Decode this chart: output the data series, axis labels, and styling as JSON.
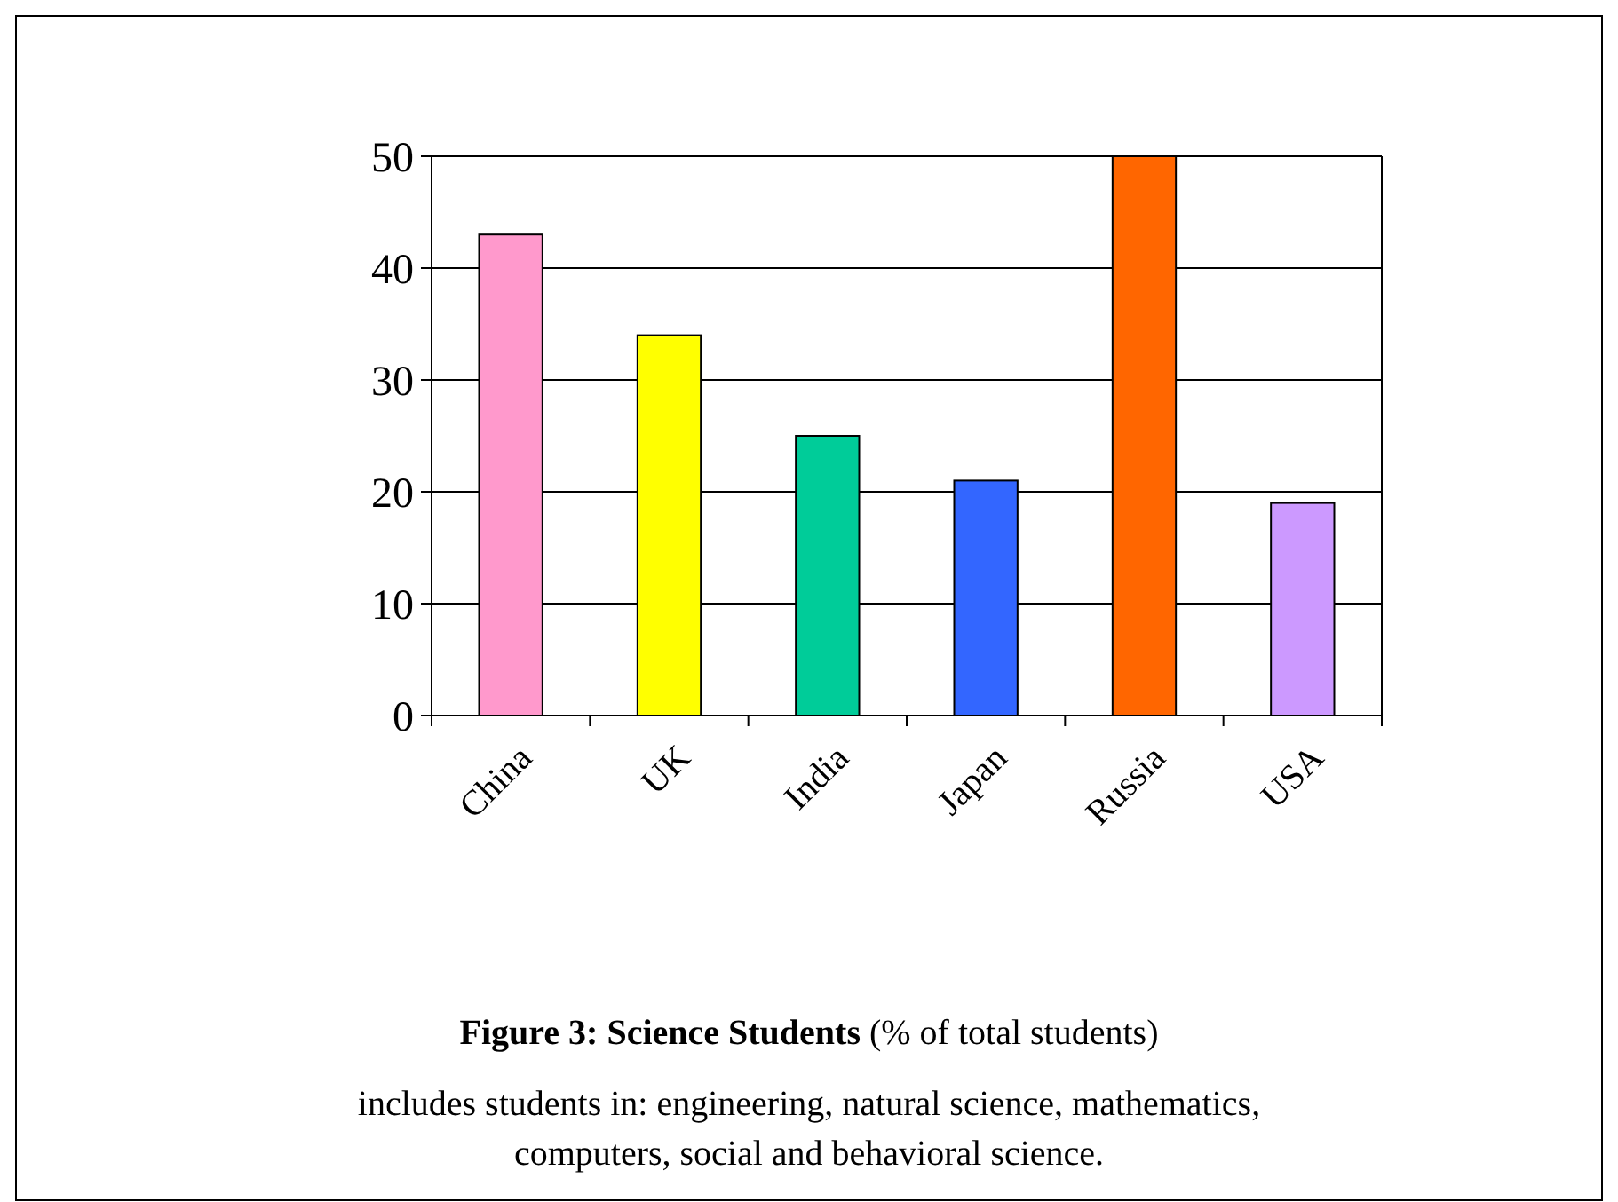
{
  "chart_data": {
    "type": "bar",
    "title": "Figure 3: Science Students",
    "subtitle": "(% of total students)",
    "categories": [
      "China",
      "UK",
      "India",
      "Japan",
      "Russia",
      "USA"
    ],
    "values": [
      43,
      34,
      25,
      21,
      50,
      19
    ],
    "colors": [
      "#ff99cc",
      "#ffff00",
      "#00cc99",
      "#3366ff",
      "#ff6600",
      "#cc99ff"
    ],
    "ylim": [
      0,
      50
    ],
    "yticks": [
      0,
      10,
      20,
      30,
      40,
      50
    ],
    "grid": "y",
    "annotations": [
      "includes students in: engineering, natural science, mathematics, computers, social and behavioral science."
    ]
  }
}
